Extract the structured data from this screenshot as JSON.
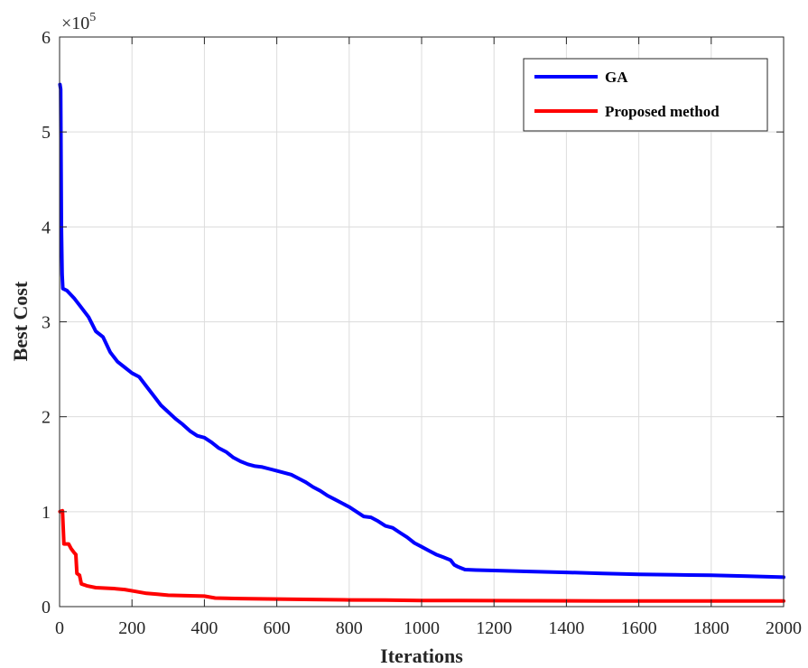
{
  "chart_data": {
    "type": "line",
    "title": "",
    "xlabel": "Iterations",
    "ylabel": "Best Cost",
    "xlim": [
      0,
      2000
    ],
    "ylim": [
      0,
      600000
    ],
    "x_ticks": [
      0,
      200,
      400,
      600,
      800,
      1000,
      1200,
      1400,
      1600,
      1800,
      2000
    ],
    "y_ticks": [
      0,
      1,
      2,
      3,
      4,
      5,
      6
    ],
    "y_multiplier_base": "×10",
    "y_multiplier_exp": "5",
    "grid": true,
    "legend_position": "top-right",
    "series": [
      {
        "name": "GA",
        "color": "#0000ff",
        "points": [
          [
            1,
            550000
          ],
          [
            3,
            545000
          ],
          [
            5,
            400000
          ],
          [
            7,
            350000
          ],
          [
            9,
            335000
          ],
          [
            20,
            333000
          ],
          [
            40,
            325000
          ],
          [
            60,
            315000
          ],
          [
            80,
            305000
          ],
          [
            100,
            290000
          ],
          [
            120,
            284000
          ],
          [
            140,
            268000
          ],
          [
            160,
            258000
          ],
          [
            180,
            252000
          ],
          [
            200,
            246000
          ],
          [
            220,
            242000
          ],
          [
            240,
            232000
          ],
          [
            260,
            222000
          ],
          [
            280,
            212000
          ],
          [
            300,
            205000
          ],
          [
            320,
            198000
          ],
          [
            340,
            192000
          ],
          [
            360,
            185000
          ],
          [
            380,
            180000
          ],
          [
            400,
            178000
          ],
          [
            420,
            173000
          ],
          [
            440,
            167000
          ],
          [
            460,
            163000
          ],
          [
            480,
            157000
          ],
          [
            500,
            153000
          ],
          [
            520,
            150000
          ],
          [
            540,
            148000
          ],
          [
            560,
            147000
          ],
          [
            580,
            145000
          ],
          [
            600,
            143000
          ],
          [
            620,
            141000
          ],
          [
            640,
            139000
          ],
          [
            660,
            135000
          ],
          [
            680,
            131000
          ],
          [
            700,
            126000
          ],
          [
            720,
            122000
          ],
          [
            740,
            117000
          ],
          [
            760,
            113000
          ],
          [
            780,
            109000
          ],
          [
            800,
            105000
          ],
          [
            820,
            100000
          ],
          [
            840,
            95000
          ],
          [
            860,
            94000
          ],
          [
            880,
            90000
          ],
          [
            900,
            85000
          ],
          [
            920,
            83000
          ],
          [
            940,
            78000
          ],
          [
            960,
            73000
          ],
          [
            980,
            67000
          ],
          [
            1000,
            63000
          ],
          [
            1020,
            59000
          ],
          [
            1040,
            55000
          ],
          [
            1060,
            52000
          ],
          [
            1080,
            49000
          ],
          [
            1090,
            44000
          ],
          [
            1100,
            42000
          ],
          [
            1120,
            39000
          ],
          [
            1150,
            38500
          ],
          [
            1200,
            38000
          ],
          [
            1300,
            37000
          ],
          [
            1400,
            36000
          ],
          [
            1500,
            35000
          ],
          [
            1600,
            34000
          ],
          [
            1700,
            33500
          ],
          [
            1800,
            33000
          ],
          [
            1900,
            32000
          ],
          [
            2000,
            31000
          ]
        ]
      },
      {
        "name": "Proposed method",
        "color": "#ff0000",
        "points": [
          [
            1,
            100000
          ],
          [
            8,
            101000
          ],
          [
            12,
            66000
          ],
          [
            25,
            66000
          ],
          [
            32,
            61000
          ],
          [
            40,
            57000
          ],
          [
            45,
            55000
          ],
          [
            48,
            35000
          ],
          [
            55,
            33000
          ],
          [
            60,
            24000
          ],
          [
            75,
            22000
          ],
          [
            100,
            20000
          ],
          [
            150,
            19000
          ],
          [
            180,
            18000
          ],
          [
            210,
            16000
          ],
          [
            240,
            14000
          ],
          [
            270,
            13000
          ],
          [
            300,
            12000
          ],
          [
            350,
            11500
          ],
          [
            400,
            11000
          ],
          [
            430,
            9000
          ],
          [
            500,
            8500
          ],
          [
            600,
            8000
          ],
          [
            700,
            7500
          ],
          [
            800,
            7000
          ],
          [
            900,
            6800
          ],
          [
            1000,
            6500
          ],
          [
            1200,
            6300
          ],
          [
            1500,
            6000
          ],
          [
            2000,
            6000
          ]
        ]
      }
    ]
  }
}
